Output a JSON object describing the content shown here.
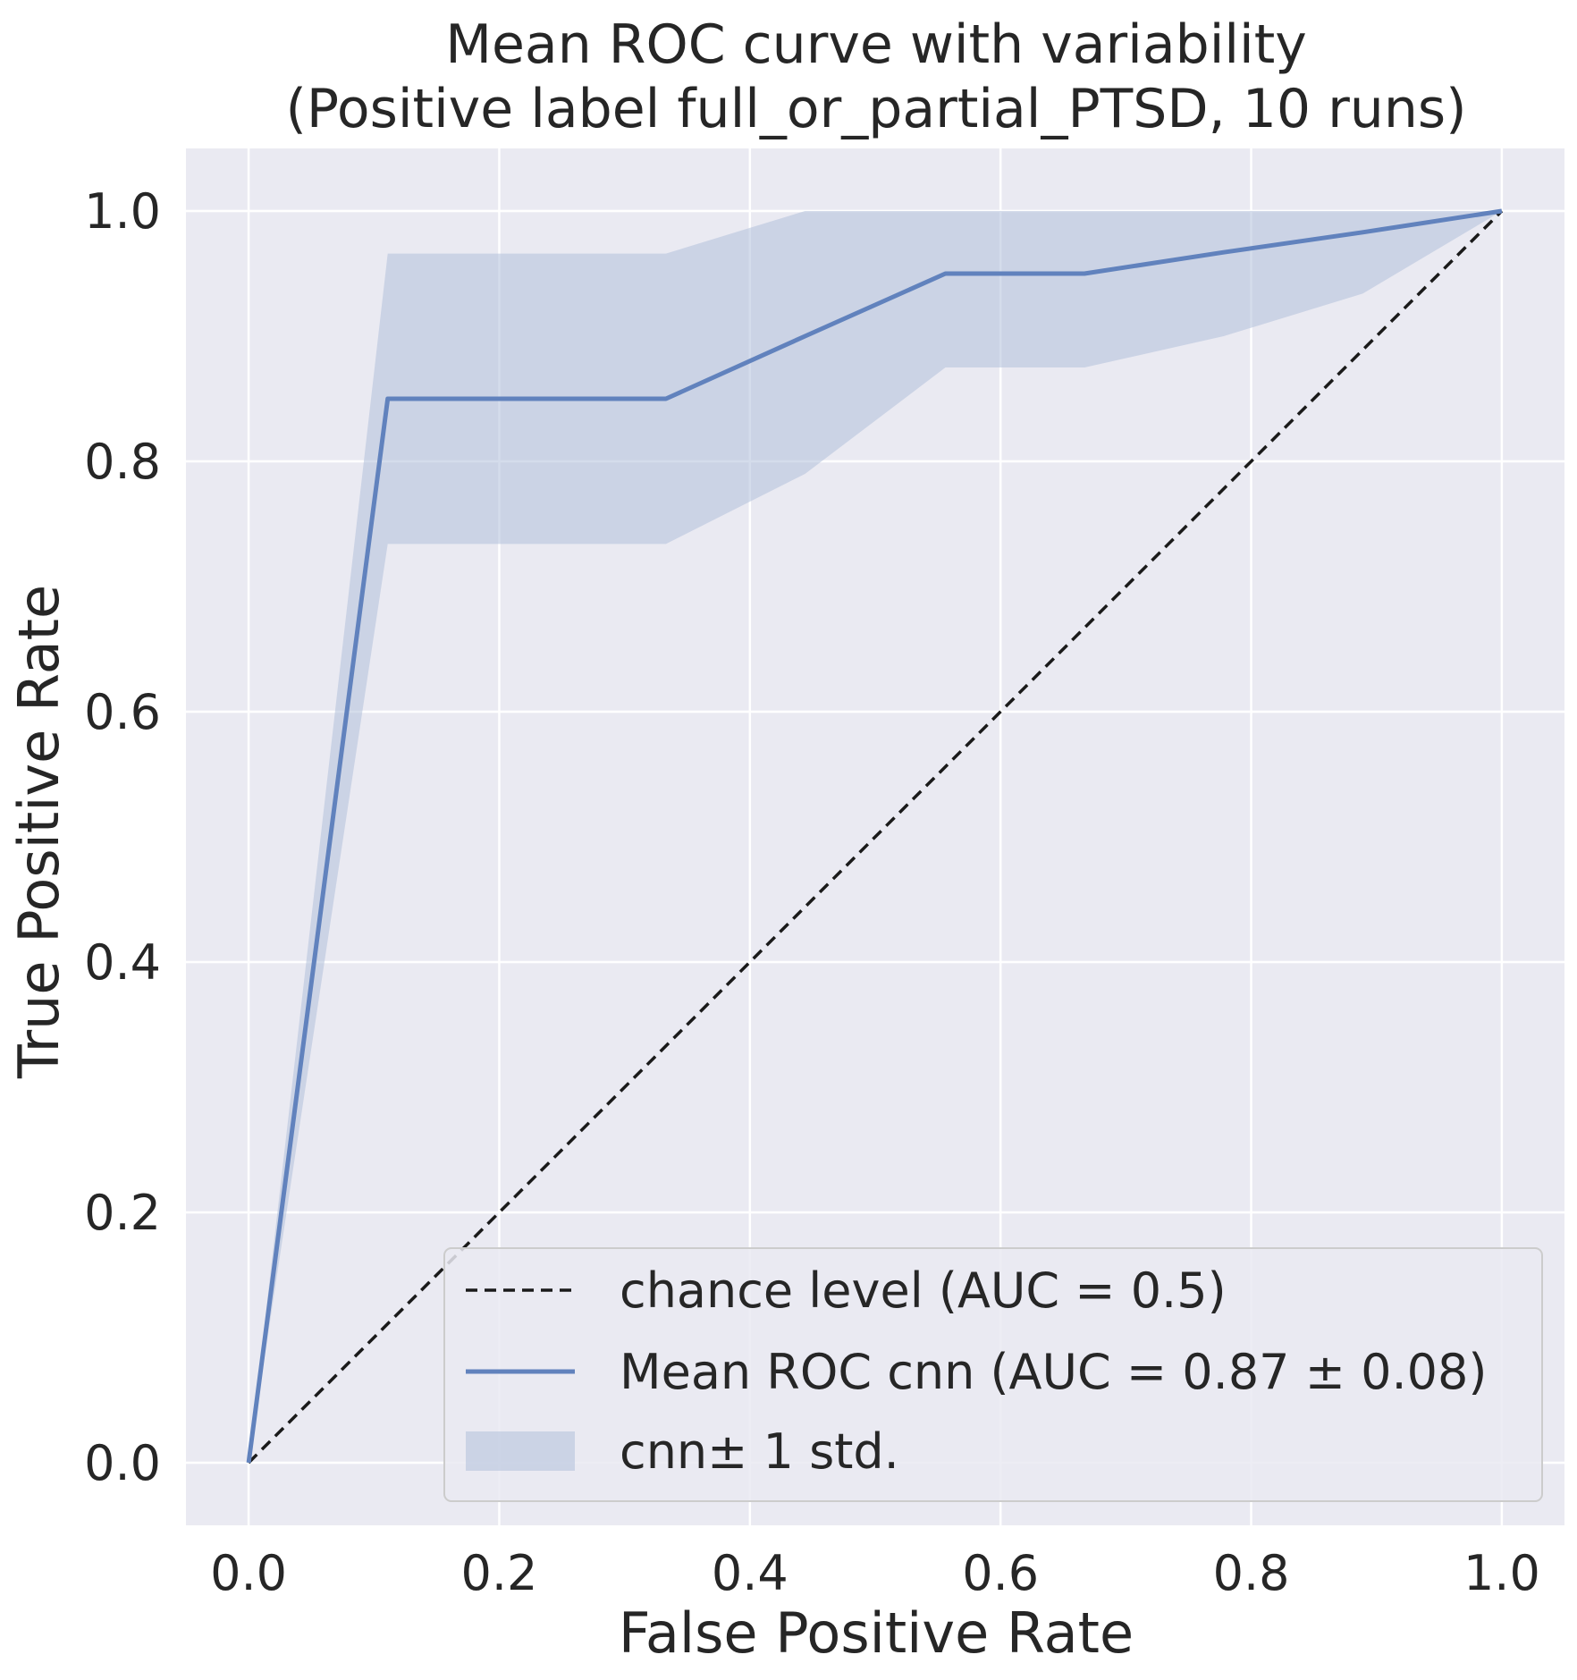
{
  "chart_data": {
    "type": "line",
    "title": "Mean ROC curve with variability",
    "subtitle": "(Positive label full_or_partial_PTSD, 10 runs)",
    "xlabel": "False Positive Rate",
    "ylabel": "True Positive Rate",
    "xlim": [
      -0.05,
      1.05
    ],
    "ylim": [
      -0.05,
      1.05
    ],
    "xticks": [
      0.0,
      0.2,
      0.4,
      0.6,
      0.8,
      1.0
    ],
    "xtick_labels": [
      "0.0",
      "0.2",
      "0.4",
      "0.6",
      "0.8",
      "1.0"
    ],
    "yticks": [
      0.0,
      0.2,
      0.4,
      0.6,
      0.8,
      1.0
    ],
    "ytick_labels": [
      "0.0",
      "0.2",
      "0.4",
      "0.6",
      "0.8",
      "1.0"
    ],
    "grid": true,
    "legend_position": "bottom-right",
    "background_color": "#eaeaf2",
    "grid_color": "#ffffff",
    "series": [
      {
        "name": "chance level (AUC = 0.5)",
        "kind": "line",
        "style": "dashed",
        "color": "#1a1a1a",
        "x": [
          0.0,
          1.0
        ],
        "y": [
          0.0,
          1.0
        ]
      },
      {
        "name": "Mean ROC cnn (AUC = 0.87 ± 0.08)",
        "kind": "line",
        "style": "solid",
        "color": "#6182bd",
        "x": [
          0.0,
          0.111,
          0.222,
          0.333,
          0.444,
          0.556,
          0.667,
          0.778,
          0.889,
          1.0
        ],
        "y": [
          0.0,
          0.85,
          0.85,
          0.85,
          0.9,
          0.95,
          0.95,
          0.967,
          0.983,
          1.0
        ]
      },
      {
        "name": " cnn± 1 std.",
        "kind": "band",
        "color": "#b0bfdb",
        "x": [
          0.0,
          0.111,
          0.222,
          0.333,
          0.444,
          0.556,
          0.667,
          0.778,
          0.889,
          1.0
        ],
        "upper": [
          0.0,
          0.966,
          0.966,
          0.966,
          1.0,
          1.0,
          1.0,
          1.0,
          1.0,
          1.0
        ],
        "lower": [
          0.0,
          0.734,
          0.734,
          0.734,
          0.79,
          0.875,
          0.875,
          0.9,
          0.934,
          1.0
        ]
      }
    ]
  }
}
